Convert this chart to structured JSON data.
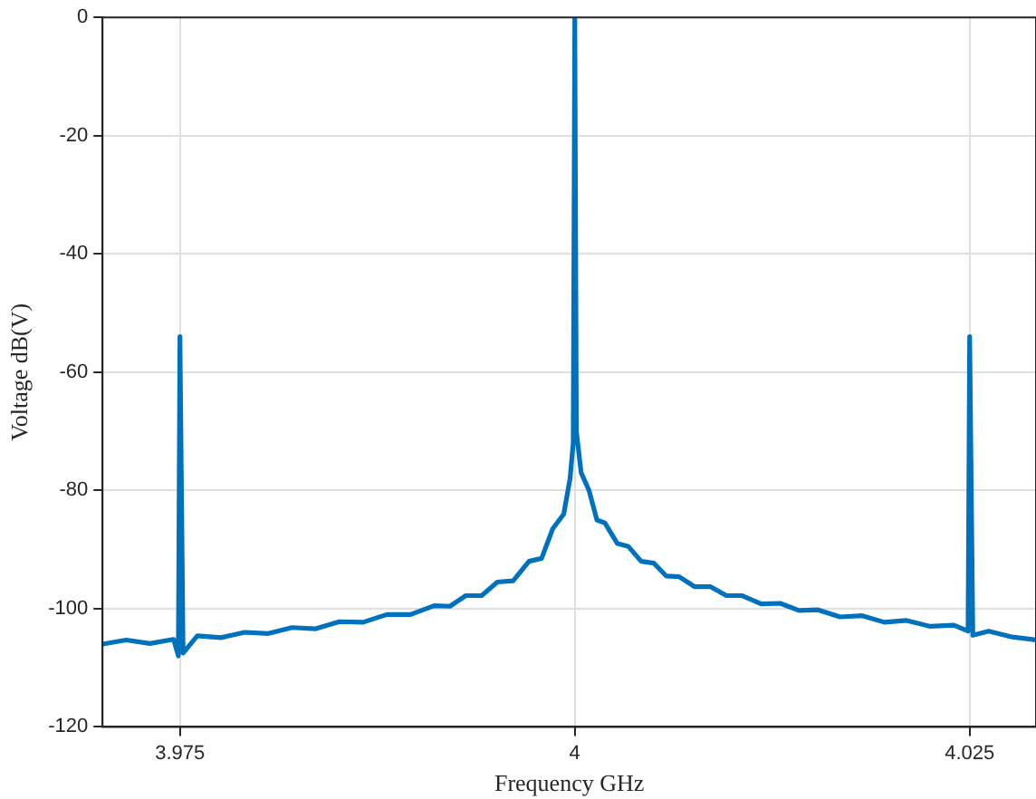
{
  "chart_data": {
    "type": "line",
    "xlabel": "Frequency GHz",
    "ylabel": "Voltage dB(V)",
    "x": [
      3.9701,
      3.9716,
      3.9731,
      3.9746,
      3.9749,
      3.975,
      3.9752,
      3.9761,
      3.9776,
      3.9791,
      3.9806,
      3.9821,
      3.9836,
      3.9851,
      3.9866,
      3.9881,
      3.9896,
      3.9911,
      3.9921,
      3.9931,
      3.9941,
      3.9951,
      3.9961,
      3.9971,
      3.9979,
      3.9986,
      3.9993,
      3.9997,
      3.9999,
      4,
      4.0001,
      4.0004,
      4.0009,
      4.0014,
      4.0019,
      4.0027,
      4.0034,
      4.0042,
      4.005,
      4.0058,
      4.0066,
      4.0076,
      4.0086,
      4.0096,
      4.0106,
      4.0118,
      4.013,
      4.0142,
      4.0154,
      4.0168,
      4.0182,
      4.0196,
      4.021,
      4.0225,
      4.024,
      4.0249,
      4.025,
      4.0252,
      4.0262,
      4.0277,
      4.0292
    ],
    "series": [
      {
        "color": "#0072bd",
        "values": [
          -106,
          -105.3,
          -105.9,
          -105.2,
          -108,
          -54,
          -107.5,
          -104.6,
          -104.9,
          -104,
          -104.2,
          -103.2,
          -103.4,
          -102.2,
          -102.3,
          -101,
          -101,
          -99.5,
          -99.6,
          -97.8,
          -97.8,
          -95.5,
          -95.3,
          -92,
          -91.5,
          -86.5,
          -84,
          -78,
          -72,
          0,
          -70,
          -77,
          -80,
          -85,
          -85.5,
          -89,
          -89.5,
          -92,
          -92.3,
          -94.5,
          -94.6,
          -96.3,
          -96.3,
          -97.8,
          -97.8,
          -99.2,
          -99.1,
          -100.3,
          -100.2,
          -101.4,
          -101.2,
          -102.3,
          -102,
          -103,
          -102.8,
          -103.8,
          -54,
          -104.5,
          -103.8,
          -104.8,
          -105.3
        ]
      }
    ],
    "xlim": [
      3.9701,
      4.0292
    ],
    "ylim": [
      -120,
      0
    ],
    "xticks": [
      3.975,
      4,
      4.025
    ],
    "yticks": [
      -120,
      -100,
      -80,
      -60,
      -40,
      -20,
      0
    ],
    "grid": true,
    "legend": false,
    "marker": "none",
    "line_style": "solid"
  }
}
